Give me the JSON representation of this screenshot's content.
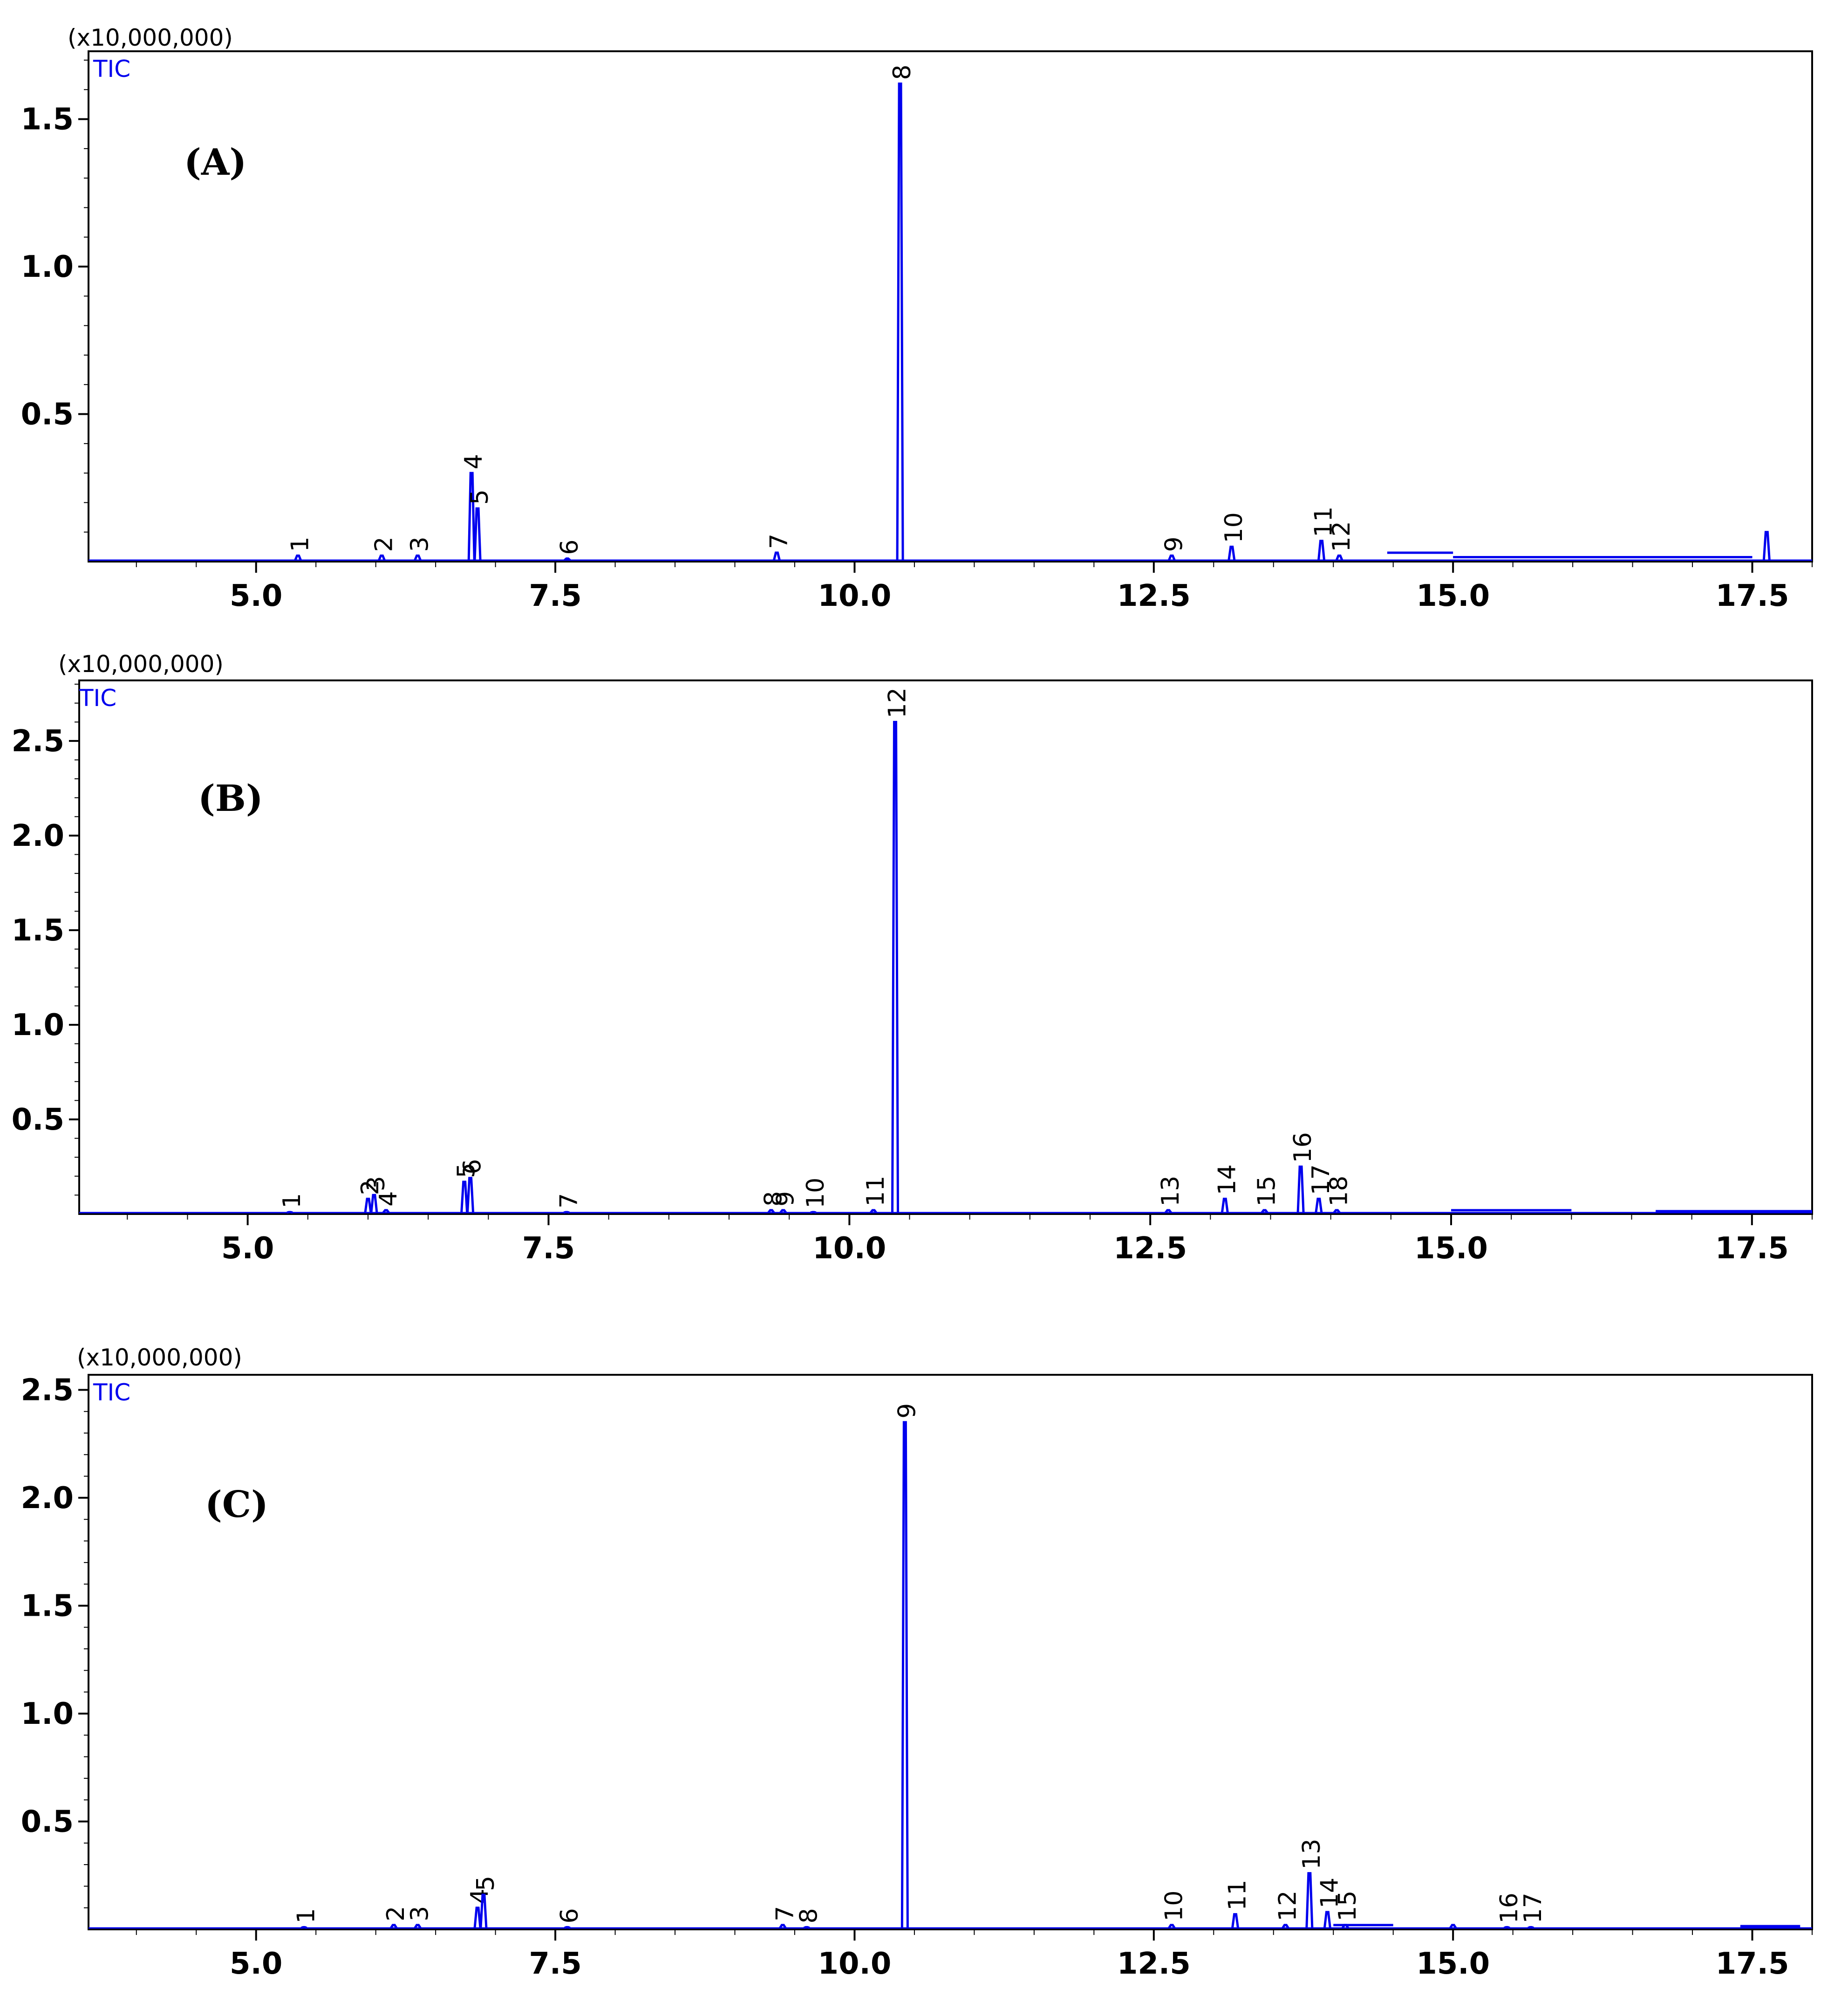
{
  "chart_data": [
    {
      "type": "line",
      "panel_label": "(A)",
      "multiplier": "(x10,000,000)",
      "trace_label": "TIC",
      "x_ticks": [
        5.0,
        7.5,
        10.0,
        12.5,
        15.0,
        17.5
      ],
      "x_tick_labels": [
        "5.0",
        "7.5",
        "10.0",
        "12.5",
        "15.0",
        "17.5"
      ],
      "xlim": [
        3.6,
        18.0
      ],
      "y_ticks": [
        0.5,
        1.0,
        1.5
      ],
      "y_tick_labels": [
        "0.5",
        "1.0",
        "1.5"
      ],
      "ylim": [
        0.0,
        1.73
      ],
      "color": "#0000ee",
      "peaks": [
        {
          "label": "1",
          "x": 5.35,
          "y": 0.02
        },
        {
          "label": "2",
          "x": 6.05,
          "y": 0.02
        },
        {
          "label": "3",
          "x": 6.35,
          "y": 0.02
        },
        {
          "label": "4",
          "x": 6.8,
          "y": 0.3
        },
        {
          "label": "5",
          "x": 6.85,
          "y": 0.18
        },
        {
          "label": "6",
          "x": 7.6,
          "y": 0.01
        },
        {
          "label": "7",
          "x": 9.35,
          "y": 0.03
        },
        {
          "label": "8",
          "x": 10.38,
          "y": 1.62
        },
        {
          "label": "9",
          "x": 12.65,
          "y": 0.02
        },
        {
          "label": "10",
          "x": 13.15,
          "y": 0.05
        },
        {
          "label": "11",
          "x": 13.9,
          "y": 0.07
        },
        {
          "label": "12",
          "x": 14.05,
          "y": 0.02
        }
      ],
      "extra_peaks": [
        {
          "x": 17.62,
          "y": 0.1
        }
      ],
      "baseline": [
        {
          "x0": 14.45,
          "x1": 15.0,
          "y": 0.03
        },
        {
          "x0": 15.0,
          "x1": 17.5,
          "y": 0.015
        }
      ]
    },
    {
      "type": "line",
      "panel_label": "(B)",
      "multiplier": "(x10,000,000)",
      "trace_label": "TIC",
      "x_ticks": [
        5.0,
        7.5,
        10.0,
        12.5,
        15.0,
        17.5
      ],
      "x_tick_labels": [
        "5.0",
        "7.5",
        "10.0",
        "12.5",
        "15.0",
        "17.5"
      ],
      "xlim": [
        3.6,
        18.0
      ],
      "y_ticks": [
        0.5,
        1.0,
        1.5,
        2.0,
        2.5
      ],
      "y_tick_labels": [
        "0.5",
        "1.0",
        "1.5",
        "2.0",
        "2.5"
      ],
      "ylim": [
        0.0,
        2.82
      ],
      "color": "#0000ee",
      "peaks": [
        {
          "label": "1",
          "x": 5.35,
          "y": 0.01
        },
        {
          "label": "2",
          "x": 6.0,
          "y": 0.08
        },
        {
          "label": "3",
          "x": 6.05,
          "y": 0.1
        },
        {
          "label": "4",
          "x": 6.15,
          "y": 0.02
        },
        {
          "label": "5",
          "x": 6.8,
          "y": 0.17
        },
        {
          "label": "6",
          "x": 6.85,
          "y": 0.19
        },
        {
          "label": "7",
          "x": 7.65,
          "y": 0.01
        },
        {
          "label": "8",
          "x": 9.35,
          "y": 0.02
        },
        {
          "label": "9",
          "x": 9.45,
          "y": 0.02
        },
        {
          "label": "10",
          "x": 9.7,
          "y": 0.01
        },
        {
          "label": "11",
          "x": 10.2,
          "y": 0.02
        },
        {
          "label": "12",
          "x": 10.38,
          "y": 2.6
        },
        {
          "label": "13",
          "x": 12.65,
          "y": 0.02
        },
        {
          "label": "14",
          "x": 13.12,
          "y": 0.08
        },
        {
          "label": "15",
          "x": 13.45,
          "y": 0.02
        },
        {
          "label": "16",
          "x": 13.75,
          "y": 0.25
        },
        {
          "label": "17",
          "x": 13.9,
          "y": 0.08
        },
        {
          "label": "18",
          "x": 14.05,
          "y": 0.02
        }
      ],
      "extra_peaks": [],
      "baseline": [
        {
          "x0": 15.0,
          "x1": 16.0,
          "y": 0.02
        },
        {
          "x0": 16.7,
          "x1": 18.0,
          "y": 0.015
        }
      ]
    },
    {
      "type": "line",
      "panel_label": "(C)",
      "multiplier": "(x10,000,000)",
      "trace_label": "TIC",
      "x_ticks": [
        5.0,
        7.5,
        10.0,
        12.5,
        15.0,
        17.5
      ],
      "x_tick_labels": [
        "5.0",
        "7.5",
        "10.0",
        "12.5",
        "15.0",
        "17.5"
      ],
      "xlim": [
        3.6,
        18.0
      ],
      "y_ticks": [
        0.5,
        1.0,
        1.5,
        2.0,
        2.5
      ],
      "y_tick_labels": [
        "0.5",
        "1.0",
        "1.5",
        "2.0",
        "2.5"
      ],
      "ylim": [
        0.0,
        2.57
      ],
      "color": "#0000ee",
      "peaks": [
        {
          "label": "1",
          "x": 5.4,
          "y": 0.01
        },
        {
          "label": "2",
          "x": 6.15,
          "y": 0.02
        },
        {
          "label": "3",
          "x": 6.35,
          "y": 0.02
        },
        {
          "label": "4",
          "x": 6.85,
          "y": 0.1
        },
        {
          "label": "5",
          "x": 6.9,
          "y": 0.16
        },
        {
          "label": "6",
          "x": 7.6,
          "y": 0.01
        },
        {
          "label": "7",
          "x": 9.4,
          "y": 0.02
        },
        {
          "label": "8",
          "x": 9.6,
          "y": 0.01
        },
        {
          "label": "9",
          "x": 10.42,
          "y": 2.35
        },
        {
          "label": "10",
          "x": 12.65,
          "y": 0.02
        },
        {
          "label": "11",
          "x": 13.18,
          "y": 0.07
        },
        {
          "label": "12",
          "x": 13.6,
          "y": 0.02
        },
        {
          "label": "13",
          "x": 13.8,
          "y": 0.26
        },
        {
          "label": "14",
          "x": 13.95,
          "y": 0.08
        },
        {
          "label": "15",
          "x": 14.1,
          "y": 0.02
        },
        {
          "label": "16",
          "x": 15.45,
          "y": 0.01
        },
        {
          "label": "17",
          "x": 15.65,
          "y": 0.01
        }
      ],
      "extra_peaks": [
        {
          "x": 15.0,
          "y": 0.02
        }
      ],
      "baseline": [
        {
          "x0": 14.0,
          "x1": 14.5,
          "y": 0.02
        },
        {
          "x0": 17.4,
          "x1": 17.9,
          "y": 0.015
        }
      ]
    }
  ]
}
